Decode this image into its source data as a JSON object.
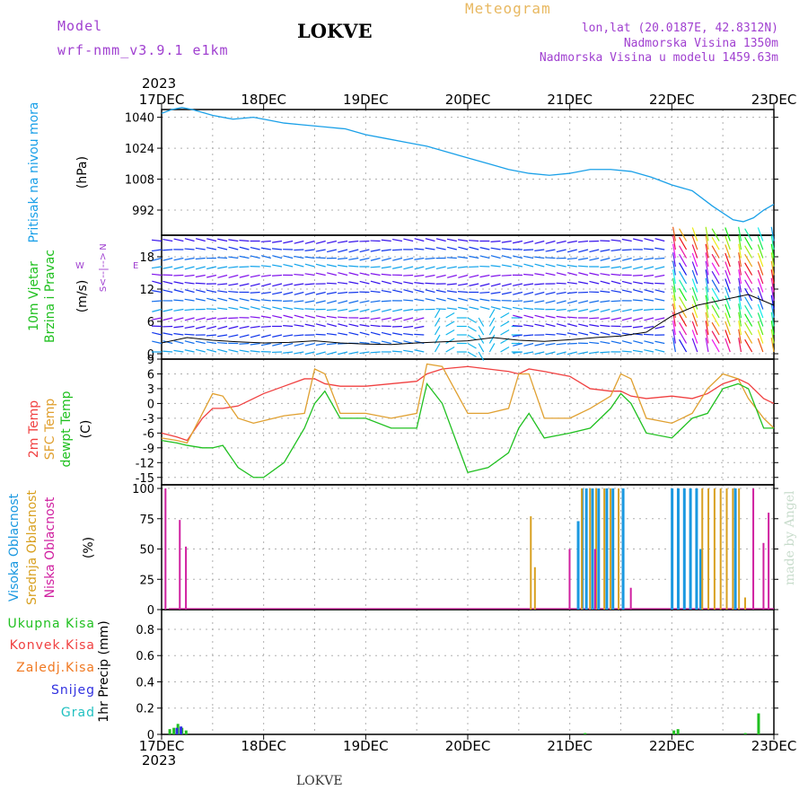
{
  "header": {
    "model_label": "Model",
    "model_run": "wrf-nmm_v3.9.1 e1km",
    "station": "LOKVE",
    "meteogram": "Meteogram",
    "coords": "lon,lat (20.0187E, 42.8312N)",
    "elevation": "Nadmorska Visina 1350m",
    "elevation_model": "Nadmorska Visina u modelu 1459.63m"
  },
  "footer": {
    "station": "LOKVE",
    "credit": "made by Angel"
  },
  "time_axis": {
    "year": "2023",
    "ticks": [
      "17DEC",
      "18DEC",
      "19DEC",
      "20DEC",
      "21DEC",
      "22DEC",
      "23DEC"
    ]
  },
  "wind_compass": {
    "n": "N",
    "w": "W",
    "e": "E",
    "s": "S",
    "center": "<--|-->"
  },
  "colors": {
    "pressure": "#1aa0e8",
    "temp2m": "#f04040",
    "sfc": "#e0a030",
    "dewpt": "#20c020",
    "high_cloud": "#1a98e0",
    "mid_cloud": "#d8a020",
    "low_cloud": "#d020a0",
    "ukupna": "#20c020",
    "konvek": "#f04040",
    "zaledj": "#f07820",
    "snijeg": "#3030e0",
    "grad": "#20c0c0"
  },
  "chart_data": [
    {
      "type": "line",
      "panel": "pressure",
      "ylabel_main": "Pritisak na nivou mora",
      "ylabel_unit": "(hPa)",
      "yticks": [
        "1040",
        "1024",
        "1008",
        "992"
      ],
      "ylim": [
        979,
        1044
      ],
      "x_unit": "days since 17DEC 00Z",
      "series": [
        {
          "name": "Pritisak na nivou mora",
          "x": [
            0,
            0.1,
            0.2,
            0.3,
            0.5,
            0.7,
            0.9,
            1.0,
            1.2,
            1.4,
            1.6,
            1.8,
            2.0,
            2.2,
            2.4,
            2.6,
            2.8,
            3.0,
            3.2,
            3.4,
            3.6,
            3.8,
            4.0,
            4.2,
            4.4,
            4.6,
            4.8,
            5.0,
            5.2,
            5.4,
            5.6,
            5.7,
            5.8,
            5.9,
            6.0
          ],
          "values": [
            1042,
            1044,
            1045,
            1044,
            1041,
            1039,
            1040,
            1039,
            1037,
            1036,
            1035,
            1034,
            1031,
            1029,
            1027,
            1025,
            1022,
            1019,
            1016,
            1013,
            1011,
            1010,
            1011,
            1013,
            1013,
            1012,
            1009,
            1005,
            1002,
            994,
            987,
            986,
            988,
            992,
            995
          ]
        }
      ]
    },
    {
      "type": "wind_barbs",
      "panel": "wind",
      "ylabel_main": "10m Vjetar",
      "ylabel_sub": "Brzina i Pravac",
      "ylabel_unit": "(m/s)",
      "yticks": [
        "18",
        "12",
        "6",
        "0"
      ],
      "ylim": [
        -1,
        22
      ],
      "x_unit": "days since 17DEC 00Z",
      "series": [
        {
          "name": "speed",
          "x": [
            0,
            0.25,
            0.5,
            0.75,
            1.0,
            1.25,
            1.5,
            1.75,
            2.0,
            2.25,
            2.5,
            2.75,
            3.0,
            3.25,
            3.5,
            3.75,
            4.0,
            4.25,
            4.5,
            4.75,
            5.0,
            5.25,
            5.5,
            5.75,
            6.0
          ],
          "values": [
            2,
            3,
            2.5,
            2.2,
            2,
            2.1,
            2.4,
            2,
            1.8,
            1.7,
            2,
            2.2,
            2.4,
            3,
            2.5,
            2.3,
            2.6,
            3,
            3.3,
            4,
            7,
            9,
            10,
            11,
            9
          ]
        }
      ]
    },
    {
      "type": "line",
      "panel": "temperature",
      "ylabel_red": "2m Temp",
      "ylabel_orange": "SFC Temp",
      "ylabel_green": "dewpt Temp",
      "ylabel_unit": "(C)",
      "yticks": [
        "9",
        "6",
        "3",
        "0",
        "-3",
        "-6",
        "-9",
        "-12",
        "-15"
      ],
      "ylim": [
        -16.5,
        9
      ],
      "x_unit": "days since 17DEC 00Z",
      "series": [
        {
          "name": "2m Temp",
          "x": [
            0,
            0.15,
            0.25,
            0.4,
            0.5,
            0.6,
            0.75,
            0.9,
            1.0,
            1.2,
            1.4,
            1.5,
            1.6,
            1.75,
            2.0,
            2.25,
            2.5,
            2.6,
            2.75,
            3.0,
            3.2,
            3.4,
            3.5,
            3.6,
            3.75,
            4.0,
            4.2,
            4.4,
            4.5,
            4.6,
            4.75,
            5.0,
            5.2,
            5.35,
            5.5,
            5.65,
            5.75,
            5.9,
            6.0
          ],
          "values": [
            -6,
            -6.8,
            -7.5,
            -3,
            -1,
            -1,
            -0.5,
            1,
            2,
            3.5,
            5,
            5,
            4,
            3.5,
            3.5,
            4,
            4.5,
            6,
            7,
            7.5,
            7,
            6.5,
            6,
            7,
            6.5,
            5.5,
            3,
            2.5,
            2.5,
            1.5,
            1,
            1.5,
            1,
            2,
            4,
            5,
            4,
            1,
            0
          ]
        },
        {
          "name": "SFC Temp",
          "x": [
            0,
            0.15,
            0.25,
            0.4,
            0.5,
            0.6,
            0.75,
            0.9,
            1.0,
            1.2,
            1.4,
            1.5,
            1.6,
            1.75,
            2.0,
            2.25,
            2.5,
            2.6,
            2.75,
            3.0,
            3.2,
            3.4,
            3.5,
            3.6,
            3.75,
            4.0,
            4.2,
            4.4,
            4.5,
            4.6,
            4.75,
            5.0,
            5.2,
            5.35,
            5.5,
            5.65,
            5.75,
            5.9,
            6.0
          ],
          "values": [
            -7,
            -7.5,
            -8,
            -2,
            2,
            1.5,
            -3,
            -4,
            -3.5,
            -2.5,
            -2,
            7,
            6,
            -2,
            -2,
            -3,
            -2,
            8,
            7.5,
            -2,
            -2,
            -1,
            6,
            6,
            -3,
            -3,
            -1,
            1.5,
            6,
            5,
            -3,
            -4,
            -2,
            3,
            6,
            5,
            1,
            -3,
            -5
          ]
        },
        {
          "name": "dewpt Temp",
          "x": [
            0,
            0.15,
            0.25,
            0.4,
            0.5,
            0.6,
            0.75,
            0.9,
            1.0,
            1.2,
            1.4,
            1.5,
            1.6,
            1.75,
            2.0,
            2.25,
            2.5,
            2.6,
            2.75,
            3.0,
            3.2,
            3.4,
            3.5,
            3.6,
            3.75,
            4.0,
            4.2,
            4.4,
            4.5,
            4.6,
            4.75,
            5.0,
            5.2,
            5.35,
            5.5,
            5.65,
            5.75,
            5.9,
            6.0
          ],
          "values": [
            -7.5,
            -8,
            -8.5,
            -9,
            -9,
            -8.5,
            -13,
            -15,
            -15,
            -12,
            -5,
            0,
            2.5,
            -3,
            -3,
            -5,
            -5,
            4,
            0,
            -14,
            -13,
            -10,
            -5,
            -2,
            -7,
            -6,
            -5,
            -1,
            2,
            0,
            -6,
            -7,
            -3,
            -2,
            3,
            4,
            3,
            -5,
            -5
          ]
        }
      ]
    },
    {
      "type": "bar",
      "panel": "clouds",
      "ylabel_blue": "Visoka Oblacnost",
      "ylabel_gold": "Srednja Oblacnost",
      "ylabel_magenta": "Niska Oblacnost",
      "ylabel_unit": "(%)",
      "yticks": [
        "100",
        "75",
        "50",
        "25",
        "0"
      ],
      "ylim": [
        0,
        103
      ],
      "x_unit": "days since 17DEC 00Z",
      "series": [
        {
          "name": "Visoka Oblacnost",
          "x": [
            4.08,
            4.12,
            4.16,
            4.22,
            4.28,
            4.36,
            4.42,
            4.52,
            5.0,
            5.06,
            5.12,
            5.18,
            5.24,
            5.28,
            5.62
          ],
          "values": [
            73,
            100,
            100,
            100,
            100,
            100,
            100,
            100,
            100,
            100,
            100,
            100,
            100,
            50,
            100
          ]
        },
        {
          "name": "Srednja Oblacnost",
          "x": [
            3.62,
            3.66,
            4.12,
            4.2,
            4.26,
            4.34,
            4.4,
            4.48,
            5.3,
            5.36,
            5.42,
            5.48,
            5.54,
            5.6,
            5.66,
            5.72
          ],
          "values": [
            77,
            35,
            100,
            100,
            100,
            100,
            100,
            100,
            100,
            100,
            100,
            100,
            100,
            100,
            100,
            10
          ]
        },
        {
          "name": "Niska Oblacnost",
          "x": [
            0.04,
            0.18,
            0.24,
            4.0,
            4.25,
            4.6,
            5.8,
            5.9,
            5.95
          ],
          "values": [
            100,
            74,
            52,
            50,
            50,
            18,
            100,
            55,
            80
          ]
        }
      ]
    },
    {
      "type": "bar",
      "panel": "precip",
      "ylabel_unit": "1hr Precip (mm)",
      "yticks": [
        "0.8",
        "0.6",
        "0.4",
        "0.2",
        "0"
      ],
      "ylim": [
        0,
        0.95
      ],
      "x_unit": "days since 17DEC 00Z",
      "series": [
        {
          "name": "Ukupna Kisa",
          "x": [
            0.08,
            0.12,
            0.16,
            0.2,
            0.24,
            4.15,
            5.02,
            5.06,
            5.72,
            5.85
          ],
          "values": [
            0.04,
            0.05,
            0.08,
            0.05,
            0.03,
            0.01,
            0.03,
            0.04,
            0.01,
            0.16
          ]
        },
        {
          "name": "Snijeg",
          "x": [
            0.15,
            0.19
          ],
          "values": [
            0.05,
            0.06
          ]
        }
      ],
      "legend": [
        "Ukupna Kisa",
        "Konvek.Kisa",
        "Zaledj.Kisa",
        "Snijeg",
        "Grad"
      ]
    }
  ]
}
